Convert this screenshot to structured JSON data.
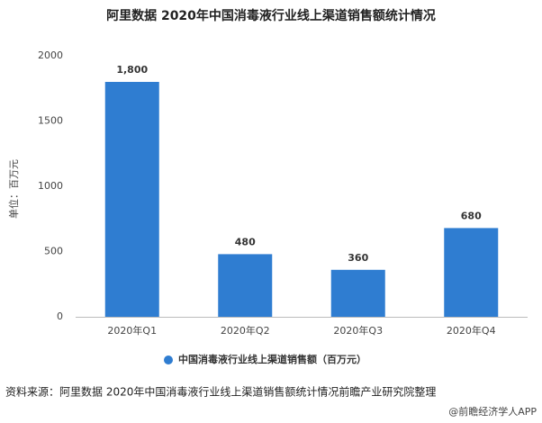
{
  "chart_data": {
    "type": "bar",
    "title": "阿里数据 2020年中国消毒液行业线上渠道销售额统计情况",
    "y_label": "单位：百万元",
    "categories": [
      "2020年Q1",
      "2020年Q2",
      "2020年Q3",
      "2020年Q4"
    ],
    "series": [
      {
        "name": "中国消毒液行业线上渠道销售额（百万元）",
        "color": "#2f7dd1",
        "values": [
          1800,
          480,
          360,
          680
        ],
        "value_labels": [
          "1,800",
          "480",
          "360",
          "680"
        ]
      }
    ],
    "ylim": [
      0,
      2000
    ],
    "yticks": [
      0,
      500,
      1000,
      1500,
      2000
    ],
    "grid": false,
    "source": "资料来源：阿里数据 2020年中国消毒液行业线上渠道销售额统计情况前瞻产业研究院整理",
    "credit": "@前瞻经济学人APP"
  }
}
